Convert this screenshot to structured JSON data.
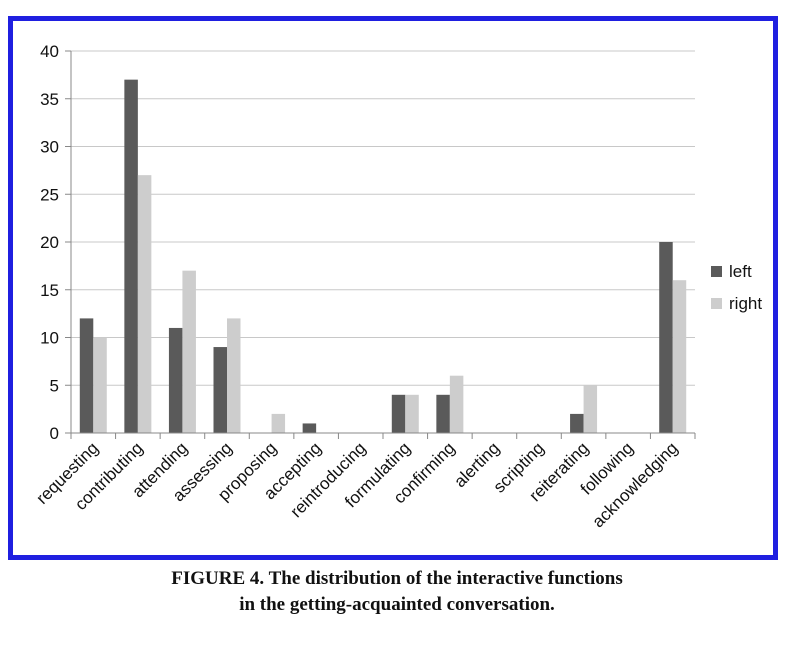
{
  "chart_data": {
    "type": "bar",
    "categories": [
      "requesting",
      "contributing",
      "attending",
      "assessing",
      "proposing",
      "accepting",
      "reintroducing",
      "formulating",
      "confirming",
      "alerting",
      "scripting",
      "reiterating",
      "following",
      "acknowledging"
    ],
    "series": [
      {
        "name": "left",
        "color": "#5a5a5a",
        "values": [
          12,
          37,
          11,
          9,
          0,
          1,
          0,
          4,
          4,
          0,
          0,
          2,
          0,
          20
        ]
      },
      {
        "name": "right",
        "color": "#cdcdcd",
        "values": [
          10,
          27,
          17,
          12,
          2,
          0,
          0,
          4,
          6,
          0,
          0,
          5,
          0,
          16
        ]
      }
    ],
    "ylim": [
      0,
      40
    ],
    "yticks": [
      "0",
      "5",
      "10",
      "15",
      "20",
      "25",
      "30",
      "35",
      "40"
    ],
    "grid": true,
    "legend_position": "right",
    "frame_color": "#1f1fe0"
  },
  "caption": {
    "line1": "FIGURE 4. The distribution of the interactive functions",
    "line2": "in the getting-acquainted conversation."
  }
}
